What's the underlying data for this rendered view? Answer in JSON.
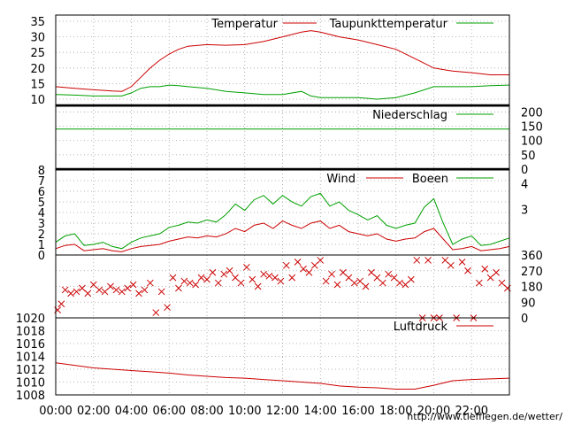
{
  "footer_url": "http://www.tiefflegen.de/wetter/",
  "x_axis": {
    "ticks": [
      "00:00",
      "02:00",
      "04:00",
      "06:00",
      "08:00",
      "10:00",
      "12:00",
      "14:00",
      "16:00",
      "18:00",
      "20:00",
      "22:00"
    ],
    "range_hours": [
      0,
      24
    ]
  },
  "chart_data": [
    {
      "type": "line",
      "panel": "temperature",
      "ylim": [
        8,
        37
      ],
      "y_ticks": [
        "10",
        "15",
        "20",
        "25",
        "30",
        "35"
      ],
      "y_tick_values": [
        10,
        15,
        20,
        25,
        30,
        35
      ],
      "grid": true,
      "legend_position": "top-right",
      "x_hours": [
        0,
        1,
        2,
        3,
        3.5,
        4,
        4.5,
        5,
        5.5,
        6,
        6.5,
        7,
        8,
        9,
        10,
        11,
        12,
        13,
        13.5,
        14,
        15,
        16,
        17,
        18,
        19,
        20,
        21,
        22,
        23,
        24
      ],
      "series": [
        {
          "name": "Temperatur",
          "color": "#cc0000",
          "values": [
            14,
            13.5,
            13,
            12.6,
            12.5,
            14,
            17,
            20,
            22.5,
            24.5,
            26,
            27,
            27.5,
            27.3,
            27.5,
            28.5,
            30,
            31.5,
            32,
            31.5,
            30,
            29,
            27.5,
            26,
            23,
            20,
            19,
            18.5,
            17.8,
            17.8
          ]
        },
        {
          "name": "Taupunkttemperatur",
          "color": "#00a000",
          "values": [
            11.5,
            11.3,
            11,
            11,
            11,
            12,
            13.5,
            14,
            14,
            14.5,
            14.3,
            14,
            13.5,
            12.5,
            12,
            11.5,
            11.5,
            12.5,
            11,
            10.5,
            10.5,
            10.5,
            10,
            10.5,
            12,
            14,
            14,
            14,
            14.3,
            14.5
          ]
        }
      ]
    },
    {
      "type": "line",
      "panel": "precipitation",
      "ylim": [
        0,
        220
      ],
      "y_ticks_right": [
        "0",
        "50",
        "100",
        "150",
        "200"
      ],
      "y_tick_values": [
        0,
        50,
        100,
        150,
        200
      ],
      "grid": true,
      "legend_position": "top-right",
      "series": [
        {
          "name": "Niederschlag",
          "color": "#00a000",
          "x_hours": [
            0,
            24
          ],
          "values": [
            140,
            140
          ]
        }
      ]
    },
    {
      "type": "line",
      "panel": "wind",
      "ylim": [
        0,
        8
      ],
      "y_ticks": [
        "0",
        "1",
        "2",
        "3",
        "4",
        "5",
        "6",
        "7",
        "8"
      ],
      "y_tick_values": [
        0,
        1,
        2,
        3,
        4,
        5,
        6,
        7,
        8
      ],
      "y_ticks_right": [
        "3",
        "4"
      ],
      "y_ticks_right_positions": [
        4.3,
        6.7
      ],
      "grid": true,
      "legend_position": "top-right",
      "x_hours": [
        0,
        0.5,
        1,
        1.5,
        2,
        2.5,
        3,
        3.5,
        4,
        4.5,
        5,
        5.5,
        6,
        6.5,
        7,
        7.5,
        8,
        8.5,
        9,
        9.5,
        10,
        10.5,
        11,
        11.5,
        12,
        12.5,
        13,
        13.5,
        14,
        14.5,
        15,
        15.5,
        16,
        16.5,
        17,
        17.5,
        18,
        18.5,
        19,
        19.5,
        20,
        20.5,
        21,
        21.5,
        22,
        22.5,
        23,
        23.5,
        24
      ],
      "series": [
        {
          "name": "Wind",
          "color": "#cc0000",
          "values": [
            0.6,
            0.9,
            1.0,
            0.4,
            0.5,
            0.6,
            0.4,
            0.3,
            0.6,
            0.8,
            0.9,
            1.0,
            1.3,
            1.5,
            1.7,
            1.6,
            1.8,
            1.7,
            2.0,
            2.5,
            2.2,
            2.8,
            3.0,
            2.5,
            3.2,
            2.8,
            2.5,
            3.0,
            3.2,
            2.5,
            2.8,
            2.2,
            2.0,
            1.8,
            2.0,
            1.5,
            1.3,
            1.5,
            1.6,
            2.2,
            2.5,
            1.5,
            0.5,
            0.6,
            0.8,
            0.4,
            0.5,
            0.6,
            0.8
          ]
        },
        {
          "name": "Boeen",
          "color": "#00a000",
          "values": [
            1.2,
            1.8,
            2.0,
            0.9,
            1.0,
            1.2,
            0.8,
            0.6,
            1.2,
            1.6,
            1.8,
            2.0,
            2.6,
            2.8,
            3.1,
            3.0,
            3.3,
            3.1,
            3.8,
            4.8,
            4.2,
            5.2,
            5.6,
            4.8,
            5.6,
            5.0,
            4.6,
            5.5,
            5.8,
            4.6,
            5.0,
            4.2,
            3.8,
            3.3,
            3.7,
            2.8,
            2.5,
            2.8,
            3.0,
            4.5,
            5.3,
            3.0,
            1.0,
            1.5,
            1.8,
            0.9,
            1.0,
            1.3,
            1.6
          ]
        }
      ]
    },
    {
      "type": "scatter",
      "panel": "wind-direction",
      "ylim": [
        0,
        360
      ],
      "y_ticks_right": [
        "0",
        "90",
        "180",
        "270",
        "360"
      ],
      "y_tick_values": [
        0,
        90,
        180,
        270,
        360
      ],
      "grid": true,
      "color": "#cc0000",
      "x_hours": [
        0.1,
        0.3,
        0.5,
        0.8,
        1.1,
        1.4,
        1.7,
        2.0,
        2.3,
        2.6,
        2.9,
        3.2,
        3.5,
        3.8,
        4.1,
        4.4,
        4.7,
        5.0,
        5.3,
        5.6,
        5.9,
        6.2,
        6.5,
        6.8,
        7.1,
        7.4,
        7.7,
        8.0,
        8.3,
        8.6,
        8.9,
        9.2,
        9.5,
        9.8,
        10.1,
        10.4,
        10.7,
        11.0,
        11.3,
        11.6,
        11.9,
        12.2,
        12.5,
        12.8,
        13.1,
        13.4,
        13.7,
        14.0,
        14.3,
        14.6,
        14.9,
        15.2,
        15.5,
        15.8,
        16.1,
        16.4,
        16.7,
        17.0,
        17.3,
        17.6,
        17.9,
        18.2,
        18.5,
        18.8,
        19.1,
        19.4,
        19.7,
        20.0,
        20.3,
        20.6,
        20.9,
        21.2,
        21.5,
        21.8,
        22.1,
        22.4,
        22.7,
        23.0,
        23.3,
        23.6,
        23.9
      ],
      "values": [
        45,
        80,
        160,
        140,
        150,
        170,
        140,
        190,
        160,
        150,
        180,
        160,
        150,
        170,
        190,
        140,
        160,
        200,
        30,
        150,
        60,
        230,
        170,
        210,
        200,
        190,
        230,
        220,
        260,
        200,
        250,
        270,
        230,
        200,
        290,
        220,
        180,
        250,
        240,
        230,
        210,
        300,
        230,
        320,
        280,
        260,
        300,
        330,
        210,
        250,
        190,
        260,
        230,
        200,
        210,
        180,
        260,
        230,
        200,
        250,
        230,
        200,
        190,
        220,
        330,
        0,
        330,
        0,
        0,
        330,
        300,
        0,
        320,
        270,
        0,
        200,
        280,
        230,
        260,
        200,
        170
      ]
    },
    {
      "type": "line",
      "panel": "pressure",
      "ylim": [
        1008,
        1020
      ],
      "y_ticks": [
        "1008",
        "1010",
        "1012",
        "1014",
        "1016",
        "1018",
        "1020"
      ],
      "y_tick_values": [
        1008,
        1010,
        1012,
        1014,
        1016,
        1018,
        1020
      ],
      "grid": true,
      "legend_position": "top-right",
      "x_hours": [
        0,
        1,
        2,
        3,
        4,
        5,
        6,
        7,
        8,
        9,
        10,
        11,
        12,
        13,
        14,
        15,
        16,
        17,
        18,
        19,
        20,
        21,
        22,
        23,
        24
      ],
      "series": [
        {
          "name": "Luftdruck",
          "color": "#cc0000",
          "values": [
            1013.0,
            1012.6,
            1012.2,
            1012.0,
            1011.8,
            1011.6,
            1011.4,
            1011.1,
            1010.9,
            1010.7,
            1010.6,
            1010.4,
            1010.2,
            1010.0,
            1009.8,
            1009.4,
            1009.2,
            1009.1,
            1008.9,
            1008.9,
            1009.5,
            1010.2,
            1010.4,
            1010.5,
            1010.6
          ]
        }
      ]
    }
  ]
}
